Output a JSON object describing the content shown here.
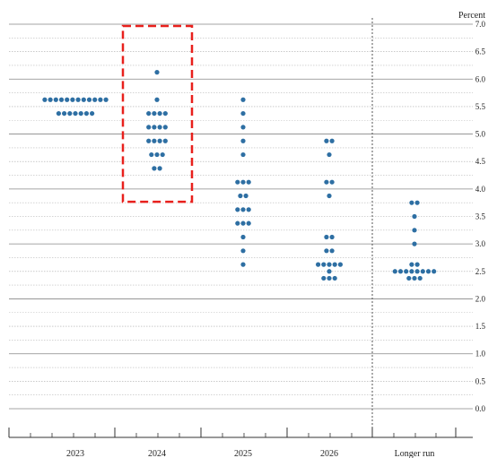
{
  "chart_data": {
    "type": "scatter",
    "ylabel": "Percent",
    "ylim": [
      0,
      7
    ],
    "yticks": [
      "0.0",
      "0.5",
      "1.0",
      "1.5",
      "2.0",
      "2.5",
      "3.0",
      "3.5",
      "4.0",
      "4.5",
      "5.0",
      "5.5",
      "6.0",
      "6.5",
      "7.0"
    ],
    "categories": [
      "2023",
      "2024",
      "2025",
      "2026",
      "Longer run"
    ],
    "grid": true,
    "dot_color": "#2e6fa3",
    "highlight_color": "#e8201c",
    "highlight": {
      "category": "2024",
      "y_range": [
        3.75,
        7.0
      ]
    },
    "series": [
      {
        "category": "2023",
        "points": [
          {
            "y": 5.625,
            "count": 12
          },
          {
            "y": 5.375,
            "count": 7
          }
        ]
      },
      {
        "category": "2024",
        "points": [
          {
            "y": 6.125,
            "count": 1
          },
          {
            "y": 5.625,
            "count": 1
          },
          {
            "y": 5.375,
            "count": 4
          },
          {
            "y": 5.125,
            "count": 4
          },
          {
            "y": 4.875,
            "count": 4
          },
          {
            "y": 4.625,
            "count": 3
          },
          {
            "y": 4.375,
            "count": 2
          }
        ]
      },
      {
        "category": "2025",
        "points": [
          {
            "y": 5.625,
            "count": 1
          },
          {
            "y": 5.375,
            "count": 1
          },
          {
            "y": 5.125,
            "count": 1
          },
          {
            "y": 4.875,
            "count": 1
          },
          {
            "y": 4.625,
            "count": 1
          },
          {
            "y": 4.125,
            "count": 3
          },
          {
            "y": 3.875,
            "count": 2
          },
          {
            "y": 3.625,
            "count": 3
          },
          {
            "y": 3.375,
            "count": 3
          },
          {
            "y": 3.125,
            "count": 1
          },
          {
            "y": 2.875,
            "count": 1
          },
          {
            "y": 2.625,
            "count": 1
          }
        ]
      },
      {
        "category": "2026",
        "points": [
          {
            "y": 4.875,
            "count": 2
          },
          {
            "y": 4.625,
            "count": 1
          },
          {
            "y": 4.125,
            "count": 2
          },
          {
            "y": 3.875,
            "count": 1
          },
          {
            "y": 3.125,
            "count": 2
          },
          {
            "y": 2.875,
            "count": 2
          },
          {
            "y": 2.625,
            "count": 5
          },
          {
            "y": 2.5,
            "count": 1
          },
          {
            "y": 2.375,
            "count": 3
          }
        ]
      },
      {
        "category": "Longer run",
        "points": [
          {
            "y": 3.75,
            "count": 2
          },
          {
            "y": 3.5,
            "count": 1
          },
          {
            "y": 3.25,
            "count": 1
          },
          {
            "y": 3.0,
            "count": 1
          },
          {
            "y": 2.625,
            "count": 2
          },
          {
            "y": 2.5,
            "count": 8
          },
          {
            "y": 2.375,
            "count": 3
          }
        ]
      }
    ]
  }
}
